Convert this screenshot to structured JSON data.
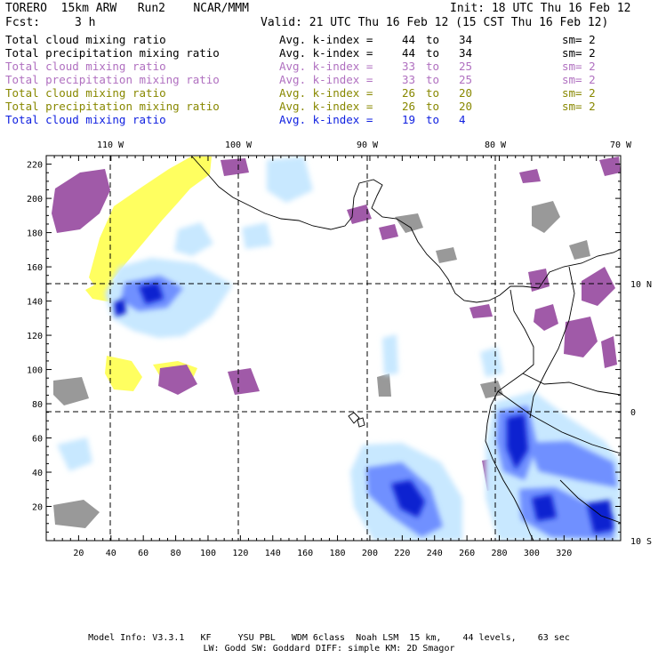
{
  "header": {
    "model_line": "TORERO  15km ARW   Run2    NCAR/MMM",
    "init": "Init: 18 UTC Thu 16 Feb 12",
    "fcst_label": "Fcst:",
    "fcst_value": "3 h",
    "valid": "Valid: 21 UTC Thu 16 Feb 12 (15 CST Thu 16 Feb 12)"
  },
  "legend": [
    {
      "field": "Total cloud mixing ratio",
      "index": "Avg. k-index =",
      "from": "44",
      "to_word": "to",
      "to": "34",
      "sm": "sm= 2",
      "color": "#000000"
    },
    {
      "field": "Total precipitation mixing ratio",
      "index": "Avg. k-index =",
      "from": "44",
      "to_word": "to",
      "to": "34",
      "sm": "sm= 2",
      "color": "#000000"
    },
    {
      "field": "Total cloud mixing ratio",
      "index": "Avg. k-index =",
      "from": "33",
      "to_word": "to",
      "to": "25",
      "sm": "sm= 2",
      "color": "#b070c0"
    },
    {
      "field": "Total precipitation mixing ratio",
      "index": "Avg. k-index =",
      "from": "33",
      "to_word": "to",
      "to": "25",
      "sm": "sm= 2",
      "color": "#b070c0"
    },
    {
      "field": "Total cloud mixing ratio",
      "index": "Avg. k-index =",
      "from": "26",
      "to_word": "to",
      "to": "20",
      "sm": "sm= 2",
      "color": "#888800"
    },
    {
      "field": "Total precipitation mixing ratio",
      "index": "Avg. k-index =",
      "from": "26",
      "to_word": "to",
      "to": "20",
      "sm": "sm= 2",
      "color": "#888800"
    },
    {
      "field": "Total cloud mixing ratio",
      "index": "Avg. k-index =",
      "from": "19",
      "to_word": "to",
      "to": "4",
      "sm": "",
      "color": "#1020e0"
    }
  ],
  "map": {
    "x_ticks": [
      "20",
      "40",
      "60",
      "80",
      "100",
      "120",
      "140",
      "160",
      "180",
      "200",
      "220",
      "240",
      "260",
      "280",
      "300",
      "320"
    ],
    "y_ticks": [
      "20",
      "40",
      "60",
      "80",
      "100",
      "120",
      "140",
      "160",
      "180",
      "200",
      "220"
    ],
    "lon_labels": [
      "110 W",
      "100 W",
      "90 W",
      "80 W",
      "70 W"
    ],
    "lat_labels": [
      "10 N",
      "0",
      "10 S"
    ],
    "colors": {
      "gray": "#999999",
      "purple": "#a05aa8",
      "yellow": "#ffff60",
      "light_blue": "#c8e8ff",
      "mid_blue": "#7090ff",
      "dark_blue": "#1020d0"
    }
  },
  "footer": {
    "line1": "Model Info: V3.3.1   KF     YSU PBL   WDM 6class  Noah LSM  15 km,    44 levels,    63 sec",
    "line2": "LW: Godd SW: Goddard DIFF: simple KM: 2D Smagor"
  }
}
